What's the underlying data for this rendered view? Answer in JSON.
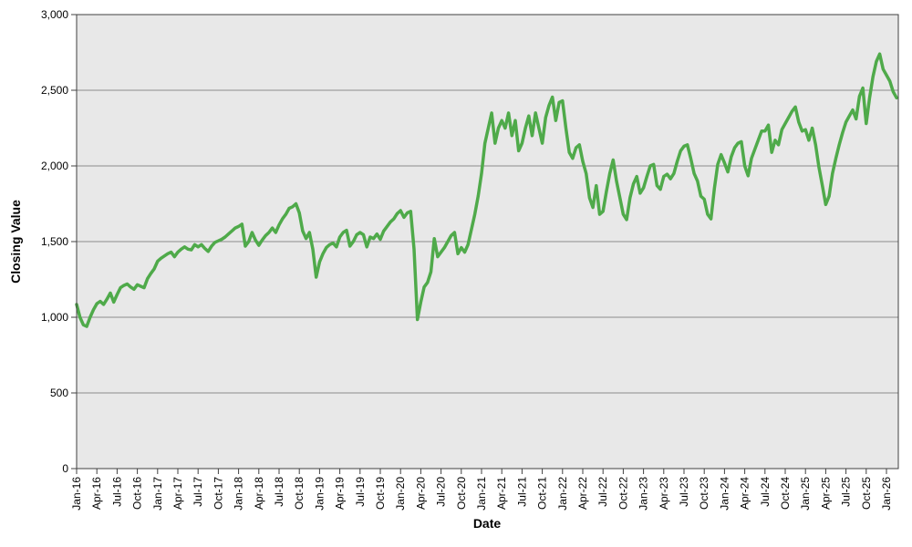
{
  "chart_data": {
    "type": "line",
    "title": "",
    "xlabel": "Date",
    "ylabel": "Closing Value",
    "legend": "none",
    "grid": "horizontal-major",
    "plot_bg_color": "#e8e8e8",
    "gridline_color": "#8c8c8c",
    "border_color": "#404040",
    "ylim": [
      0,
      3000
    ],
    "y_tick_step": 500,
    "y_tick_labels": [
      "0",
      "500",
      "1,000",
      "1,500",
      "2,000",
      "2,500",
      "3,000"
    ],
    "x_tick_labels": [
      "Jan-16",
      "Apr-16",
      "Jul-16",
      "Oct-16",
      "Jan-17",
      "Apr-17",
      "Jul-17",
      "Oct-17",
      "Jan-18",
      "Apr-18",
      "Jul-18",
      "Oct-18",
      "Jan-19",
      "Apr-19",
      "Jul-19",
      "Oct-19",
      "Jan-20",
      "Apr-20",
      "Jul-20",
      "Oct-20",
      "Jan-21",
      "Apr-21",
      "Jul-21",
      "Oct-21",
      "Jan-22",
      "Apr-22",
      "Jul-22",
      "Oct-22",
      "Jan-23",
      "Apr-23",
      "Jul-23",
      "Oct-23",
      "Jan-24",
      "Apr-24",
      "Jul-24",
      "Oct-24",
      "Jan-25",
      "Apr-25",
      "Jul-25",
      "Oct-25",
      "Jan-26"
    ],
    "x_tick_interval_months": 3,
    "points_per_month": 2,
    "x_start_label": "Jan-16",
    "series": [
      {
        "name": "Closing Value",
        "color": "#4faa4a",
        "stroke_width": 3.5,
        "values": [
          1085,
          1000,
          950,
          940,
          1000,
          1050,
          1090,
          1105,
          1085,
          1120,
          1160,
          1100,
          1150,
          1195,
          1210,
          1220,
          1200,
          1185,
          1215,
          1205,
          1195,
          1255,
          1290,
          1320,
          1370,
          1390,
          1405,
          1420,
          1430,
          1400,
          1430,
          1450,
          1465,
          1450,
          1445,
          1480,
          1465,
          1480,
          1455,
          1435,
          1470,
          1495,
          1505,
          1515,
          1530,
          1550,
          1570,
          1590,
          1600,
          1615,
          1470,
          1500,
          1560,
          1510,
          1475,
          1510,
          1540,
          1560,
          1590,
          1560,
          1610,
          1650,
          1680,
          1720,
          1730,
          1750,
          1690,
          1570,
          1520,
          1560,
          1450,
          1265,
          1365,
          1420,
          1460,
          1480,
          1490,
          1465,
          1530,
          1560,
          1575,
          1470,
          1500,
          1545,
          1560,
          1545,
          1465,
          1530,
          1520,
          1550,
          1515,
          1570,
          1600,
          1630,
          1650,
          1685,
          1705,
          1660,
          1690,
          1700,
          1450,
          985,
          1100,
          1200,
          1230,
          1300,
          1520,
          1400,
          1430,
          1460,
          1500,
          1540,
          1560,
          1420,
          1460,
          1430,
          1480,
          1580,
          1680,
          1800,
          1950,
          2150,
          2250,
          2350,
          2150,
          2250,
          2300,
          2250,
          2350,
          2200,
          2300,
          2100,
          2150,
          2250,
          2330,
          2200,
          2350,
          2250,
          2150,
          2320,
          2400,
          2455,
          2300,
          2420,
          2430,
          2250,
          2090,
          2050,
          2120,
          2140,
          2030,
          1950,
          1790,
          1725,
          1870,
          1680,
          1700,
          1830,
          1950,
          2040,
          1900,
          1790,
          1680,
          1645,
          1790,
          1880,
          1930,
          1820,
          1855,
          1930,
          2000,
          2010,
          1870,
          1845,
          1930,
          1945,
          1915,
          1950,
          2030,
          2100,
          2130,
          2140,
          2050,
          1950,
          1900,
          1800,
          1780,
          1680,
          1650,
          1850,
          2010,
          2075,
          2020,
          1960,
          2060,
          2120,
          2150,
          2160,
          2000,
          1935,
          2050,
          2110,
          2170,
          2230,
          2230,
          2270,
          2090,
          2170,
          2140,
          2240,
          2280,
          2320,
          2360,
          2390,
          2290,
          2230,
          2240,
          2170,
          2250,
          2140,
          1990,
          1870,
          1745,
          1800,
          1950,
          2050,
          2140,
          2220,
          2290,
          2330,
          2370,
          2310,
          2460,
          2515,
          2280,
          2450,
          2590,
          2690,
          2740,
          2640,
          2600,
          2560,
          2490,
          2450
        ]
      }
    ]
  }
}
